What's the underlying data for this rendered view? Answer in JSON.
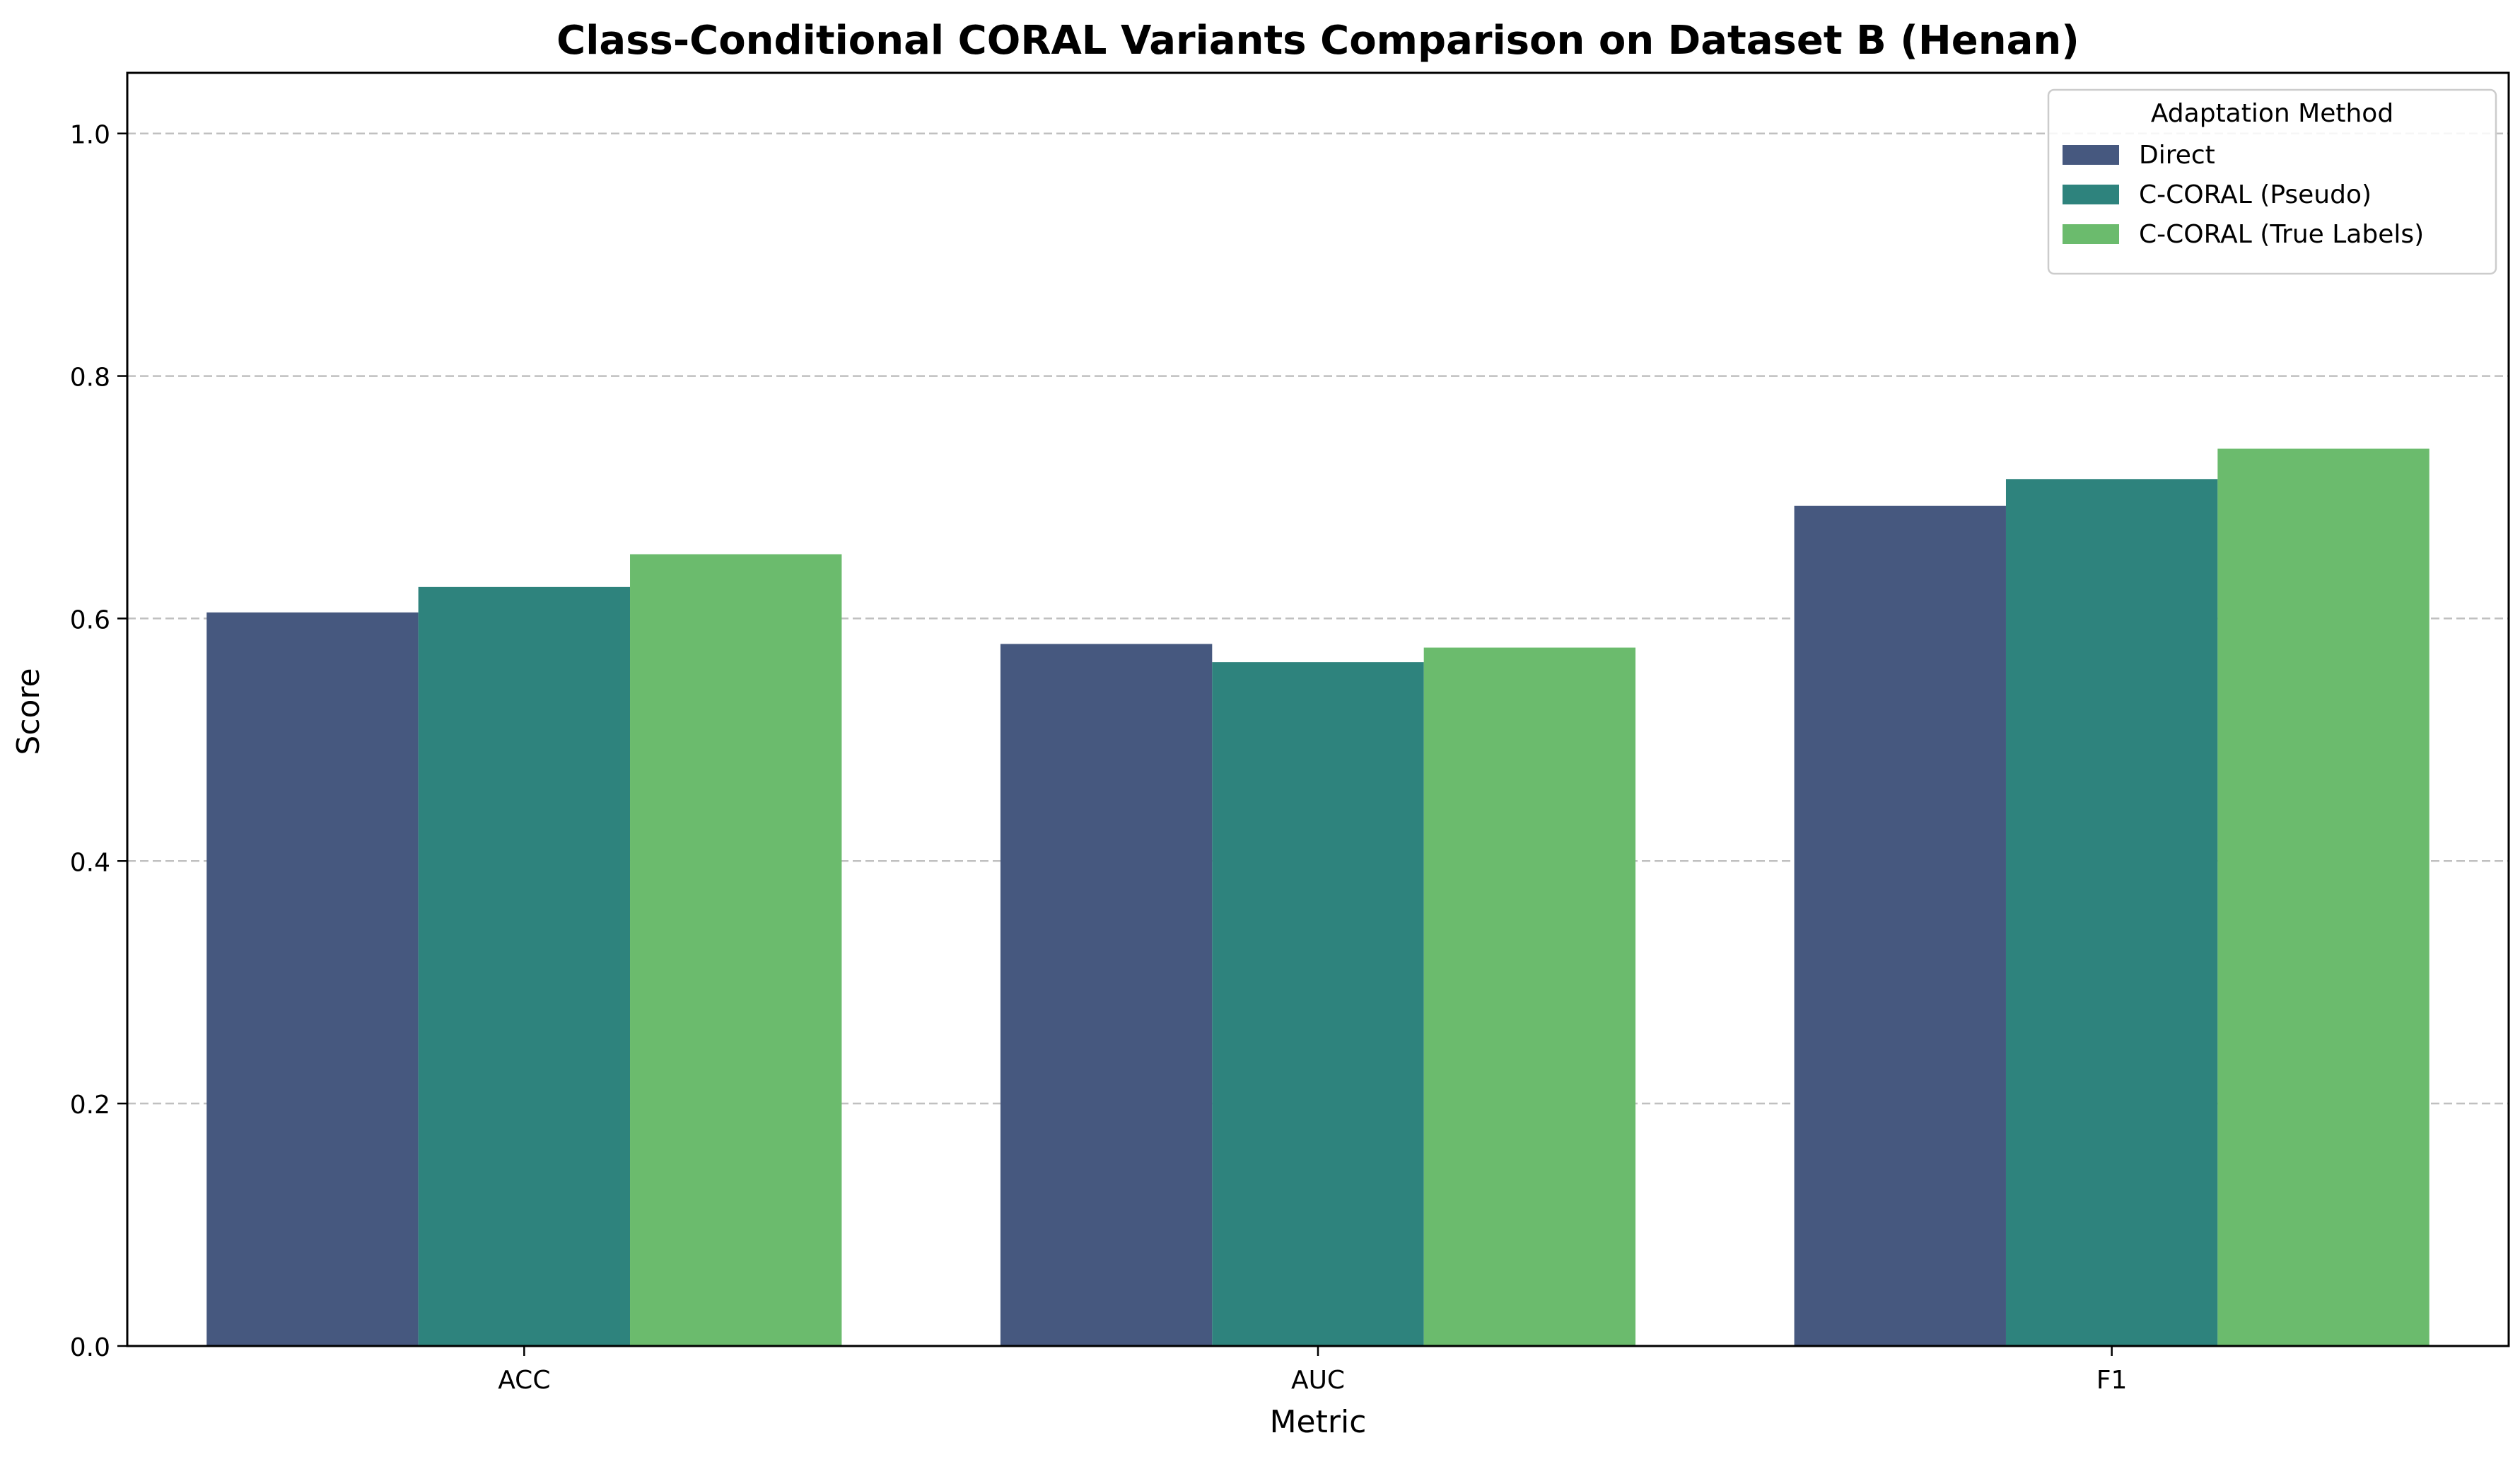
{
  "chart_data": {
    "type": "bar",
    "title": "Class-Conditional CORAL Variants Comparison on Dataset B (Henan)",
    "xlabel": "Metric",
    "ylabel": "Score",
    "categories": [
      "ACC",
      "AUC",
      "F1"
    ],
    "series": [
      {
        "name": "Direct",
        "color": "#46587f",
        "values": [
          0.605,
          0.579,
          0.693
        ]
      },
      {
        "name": "C-CORAL (Pseudo)",
        "color": "#2e837d",
        "values": [
          0.626,
          0.564,
          0.715
        ]
      },
      {
        "name": "C-CORAL (True Labels)",
        "color": "#6bbb6d",
        "values": [
          0.653,
          0.576,
          0.74
        ]
      }
    ],
    "ylim": [
      0,
      1.05
    ],
    "yticks": [
      "0.0",
      "0.2",
      "0.4",
      "0.6",
      "0.8",
      "1.0"
    ],
    "grid": "y-dashed",
    "legend": {
      "title": "Adaptation Method",
      "placement": "top-right"
    }
  }
}
